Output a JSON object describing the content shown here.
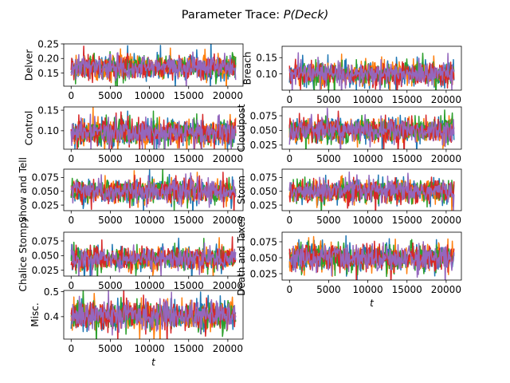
{
  "figure": {
    "title_prefix": "Parameter Trace: ",
    "title_math": "P(Deck)"
  },
  "chart_data": {
    "type": "line",
    "title": "Parameter Trace: P(Deck)",
    "series_colors": [
      "#1f77b4",
      "#ff7f0e",
      "#2ca02c",
      "#d62728",
      "#9467bd"
    ],
    "x_range": [
      0,
      21000
    ],
    "subplots": [
      {
        "name": "Delver",
        "ylabel": "Delver",
        "xlabel": "",
        "x_ticks": [
          0,
          5000,
          10000,
          15000,
          20000
        ],
        "ylim": [
          0.105,
          0.25
        ],
        "y_ticks": [
          0.15,
          0.2,
          0.25
        ],
        "y_tick_labels": [
          "0.15",
          "0.20",
          "0.25"
        ],
        "mean": 0.17,
        "spread": 0.025
      },
      {
        "name": "Breach",
        "ylabel": "Breach",
        "xlabel": "",
        "x_ticks": [
          0,
          5000,
          10000,
          15000,
          20000
        ],
        "ylim": [
          0.05,
          0.185
        ],
        "y_ticks": [
          0.1,
          0.15
        ],
        "y_tick_labels": [
          "0.10",
          "0.15"
        ],
        "mean": 0.1,
        "spread": 0.022
      },
      {
        "name": "Control",
        "ylabel": "Control",
        "xlabel": "",
        "x_ticks": [
          0,
          5000,
          10000,
          15000,
          20000
        ],
        "ylim": [
          0.055,
          0.158
        ],
        "y_ticks": [
          0.1,
          0.15
        ],
        "y_tick_labels": [
          "0.10",
          "0.15"
        ],
        "mean": 0.095,
        "spread": 0.02
      },
      {
        "name": "Cloudpost",
        "ylabel": "Cloudpost",
        "xlabel": "",
        "x_ticks": [
          0,
          5000,
          10000,
          15000,
          20000
        ],
        "ylim": [
          0.018,
          0.09
        ],
        "y_ticks": [
          0.025,
          0.05,
          0.075
        ],
        "y_tick_labels": [
          "0.025",
          "0.050",
          "0.075"
        ],
        "mean": 0.05,
        "spread": 0.013
      },
      {
        "name": "Show and Tell",
        "ylabel": "Show and Tell",
        "xlabel": "",
        "x_ticks": [
          0,
          5000,
          10000,
          15000,
          20000
        ],
        "ylim": [
          0.015,
          0.09
        ],
        "y_ticks": [
          0.025,
          0.05,
          0.075
        ],
        "y_tick_labels": [
          "0.025",
          "0.050",
          "0.075"
        ],
        "mean": 0.05,
        "spread": 0.013
      },
      {
        "name": "Storm",
        "ylabel": "Storm",
        "xlabel": "",
        "x_ticks": [
          0,
          5000,
          10000,
          15000,
          20000
        ],
        "ylim": [
          0.015,
          0.09
        ],
        "y_ticks": [
          0.025,
          0.05,
          0.075
        ],
        "y_tick_labels": [
          "0.025",
          "0.050",
          "0.075"
        ],
        "mean": 0.05,
        "spread": 0.013
      },
      {
        "name": "Chalice Stompy",
        "ylabel": "Chalice Stompy",
        "xlabel": "",
        "x_ticks": [
          0,
          5000,
          10000,
          15000,
          20000
        ],
        "ylim": [
          0.015,
          0.09
        ],
        "y_ticks": [
          0.025,
          0.05,
          0.075
        ],
        "y_tick_labels": [
          "0.025",
          "0.050",
          "0.075"
        ],
        "mean": 0.045,
        "spread": 0.012
      },
      {
        "name": "Death and Taxes",
        "ylabel": "Death and Taxes",
        "xlabel": "t",
        "x_ticks": [
          0,
          5000,
          10000,
          15000,
          20000
        ],
        "ylim": [
          0.015,
          0.09
        ],
        "y_ticks": [
          0.025,
          0.05,
          0.075
        ],
        "y_tick_labels": [
          "0.025",
          "0.050",
          "0.075"
        ],
        "mean": 0.05,
        "spread": 0.013
      },
      {
        "name": "Misc.",
        "ylabel": "Misc.",
        "xlabel": "t",
        "x_ticks": [
          0,
          5000,
          10000,
          15000,
          20000
        ],
        "ylim": [
          0.31,
          0.505
        ],
        "y_ticks": [
          0.4,
          0.5
        ],
        "y_tick_labels": [
          "0.4",
          "0.5"
        ],
        "mean": 0.405,
        "spread": 0.035
      }
    ]
  }
}
